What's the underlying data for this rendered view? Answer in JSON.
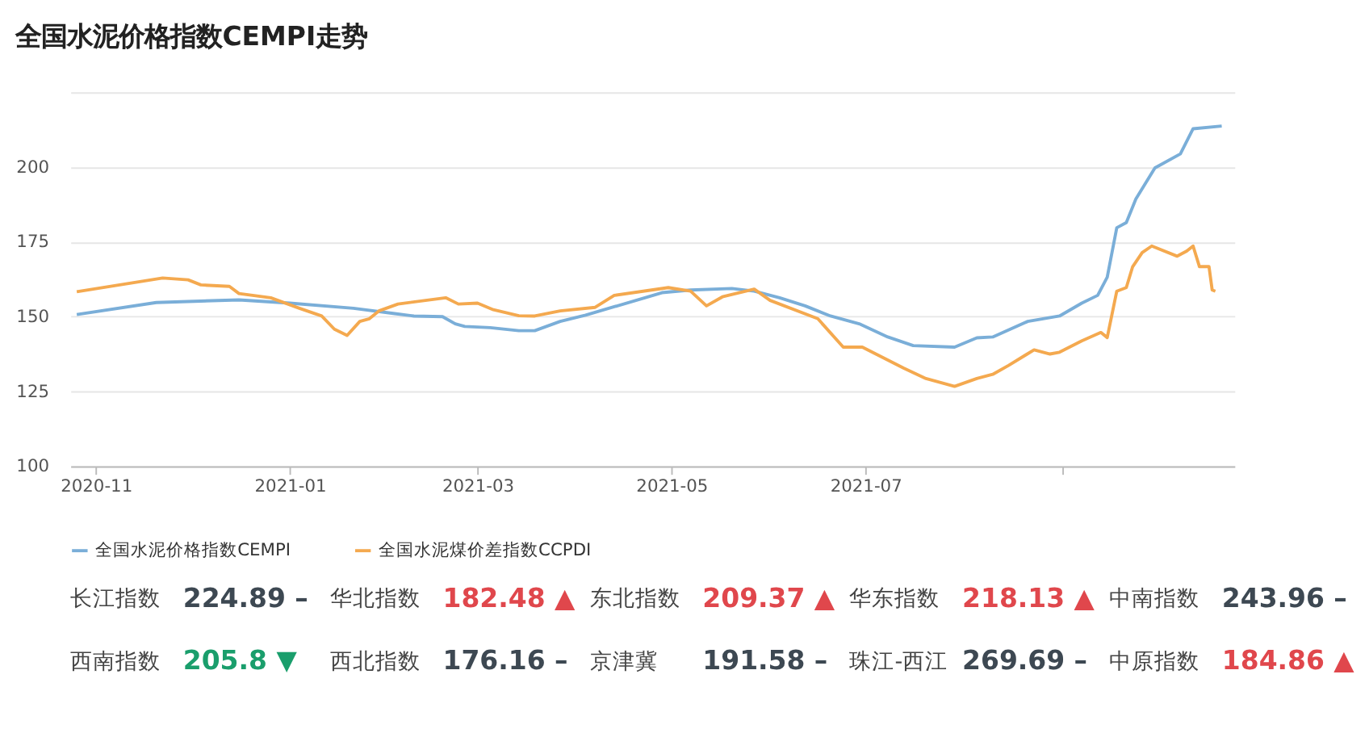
{
  "chart_data": [
    {
      "type": "line",
      "title": "全国水泥价格指数CEMPI走势",
      "xlim": [
        "2020-10-24",
        "2021-10-25"
      ],
      "ylim": [
        100,
        225
      ],
      "yticks": [
        100,
        125,
        150,
        175,
        200,
        {
          "value": 225,
          "label": null
        }
      ],
      "xticks": [
        {
          "value": "2020-11-01",
          "label": "2020-11"
        },
        {
          "value": "2021-01-01",
          "label": "2021-01"
        },
        {
          "value": "2021-03-01",
          "label": "2021-03"
        },
        {
          "value": "2021-05-01",
          "label": "2021-05"
        },
        {
          "value": "2021-07-01",
          "label": "2021-07"
        },
        {
          "value": "2021-09-01",
          "label": null
        }
      ],
      "grid": "y",
      "legend": "bottom",
      "series": [
        {
          "name": "全国水泥价格指数CEMPI",
          "color": "#7aaed8",
          "x": [
            "2020-10-26",
            "2020-11-20",
            "2020-12-16",
            "2021-01-01",
            "2021-01-21",
            "2021-02-03",
            "2021-02-09",
            "2021-02-18",
            "2021-02-22",
            "2021-02-25",
            "2021-03-05",
            "2021-03-14",
            "2021-03-19",
            "2021-03-27",
            "2021-04-04",
            "2021-04-13",
            "2021-04-28",
            "2021-05-07",
            "2021-05-20",
            "2021-05-27",
            "2021-06-04",
            "2021-06-12",
            "2021-06-20",
            "2021-06-29",
            "2021-07-08",
            "2021-07-16",
            "2021-07-29",
            "2021-08-05",
            "2021-08-10",
            "2021-08-21",
            "2021-08-31",
            "2021-09-07",
            "2021-09-12",
            "2021-09-15",
            "2021-09-18",
            "2021-09-21",
            "2021-09-24",
            "2021-09-30",
            "2021-10-08",
            "2021-10-12",
            "2021-10-21"
          ],
          "values": [
            150.7,
            154.7,
            155.6,
            154.5,
            152.8,
            151,
            150.2,
            150,
            147.6,
            146.7,
            146.3,
            145.3,
            145.3,
            148.4,
            150.5,
            153.3,
            158,
            158.9,
            159.4,
            158.5,
            156.3,
            153.6,
            150.2,
            147.6,
            143.2,
            140.3,
            139.8,
            142.9,
            143.2,
            148.4,
            150.2,
            154.5,
            157.1,
            163.2,
            179.7,
            181.4,
            189.3,
            199.7,
            204.4,
            212.8,
            213.7
          ]
        },
        {
          "name": "全国水泥煤价差指数CCPDI",
          "color": "#f4a94f",
          "x": [
            "2020-10-26",
            "2020-11-22",
            "2020-11-30",
            "2020-12-04",
            "2020-12-13",
            "2020-12-16",
            "2020-12-26",
            "2021-01-04",
            "2021-01-11",
            "2021-01-15",
            "2021-01-19",
            "2021-01-23",
            "2021-01-26",
            "2021-01-29",
            "2021-02-04",
            "2021-02-19",
            "2021-02-23",
            "2021-03-01",
            "2021-03-06",
            "2021-03-14",
            "2021-03-19",
            "2021-03-27",
            "2021-04-07",
            "2021-04-13",
            "2021-04-30",
            "2021-05-07",
            "2021-05-12",
            "2021-05-17",
            "2021-05-27",
            "2021-06-01",
            "2021-06-16",
            "2021-06-24",
            "2021-06-30",
            "2021-07-05",
            "2021-07-13",
            "2021-07-20",
            "2021-07-29",
            "2021-08-05",
            "2021-08-10",
            "2021-08-15",
            "2021-08-23",
            "2021-08-28",
            "2021-08-31",
            "2021-09-07",
            "2021-09-13",
            "2021-09-15",
            "2021-09-18",
            "2021-09-21",
            "2021-09-23",
            "2021-09-26",
            "2021-09-29",
            "2021-10-07",
            "2021-10-10",
            "2021-10-12",
            "2021-10-14",
            "2021-10-17",
            "2021-10-18",
            "2021-10-19"
          ],
          "values": [
            158.3,
            162.9,
            162.3,
            160.6,
            160.1,
            157.7,
            156.3,
            152.8,
            150.2,
            145.8,
            143.7,
            148.4,
            149.3,
            151.9,
            154.2,
            156.3,
            154.2,
            154.5,
            152.3,
            150.3,
            150.2,
            151.9,
            153.1,
            157.1,
            159.7,
            158.5,
            153.6,
            156.6,
            159.2,
            155.4,
            149.3,
            139.8,
            139.8,
            137.1,
            132.8,
            129.3,
            126.7,
            129.3,
            130.7,
            133.7,
            138.9,
            137.5,
            138.1,
            141.9,
            144.7,
            143,
            158.5,
            159.7,
            166.7,
            171.4,
            173.6,
            170.2,
            171.9,
            173.6,
            166.7,
            166.7,
            158.9,
            158.5
          ]
        }
      ]
    },
    {
      "type": "other",
      "categories": [
        "长江指数",
        "华北指数",
        "东北指数",
        "华东指数",
        "中南指数",
        "西南指数",
        "西北指数",
        "京津冀",
        "珠江-西江",
        "中原指数"
      ],
      "value_labels": [
        "224.89 –",
        "182.48 ▲",
        "209.37 ▲",
        "218.13 ▲",
        "243.96 –",
        "205.8 ▼",
        "176.16 –",
        "191.58 –",
        "269.69 –",
        "184.86 ▲"
      ],
      "colors": [
        "#3d4852",
        "#e0474c",
        "#e0474c",
        "#e0474c",
        "#3d4852",
        "#1a9e6c",
        "#3d4852",
        "#3d4852",
        "#3d4852",
        "#e0474c"
      ]
    }
  ]
}
